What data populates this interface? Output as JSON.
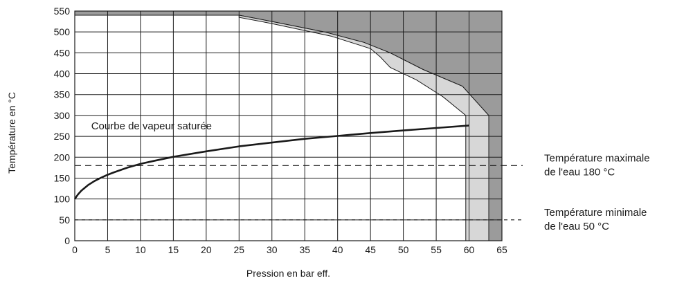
{
  "chart_data": {
    "type": "line",
    "xlabel": "Pression en bar eff.",
    "ylabel": "Température en °C",
    "xlim": [
      0,
      65
    ],
    "ylim": [
      0,
      550
    ],
    "x_ticks": [
      0,
      5,
      10,
      15,
      20,
      25,
      30,
      35,
      40,
      45,
      50,
      55,
      60,
      65
    ],
    "y_ticks": [
      0,
      50,
      100,
      150,
      200,
      250,
      300,
      350,
      400,
      450,
      500,
      550
    ],
    "grid": true,
    "series": [
      {
        "name": "Courbe de vapeur saturée",
        "x": [
          0,
          0.5,
          1,
          2,
          3,
          4,
          5,
          6,
          8,
          10,
          12,
          15,
          20,
          25,
          30,
          35,
          40,
          45,
          50,
          55,
          60
        ],
        "y": [
          100,
          111,
          120,
          133,
          143,
          151,
          158,
          164,
          175,
          184,
          191,
          201,
          214,
          226,
          235,
          244,
          251,
          258,
          264,
          270,
          276
        ]
      }
    ],
    "regions": [
      {
        "kind": "dark",
        "polygon": [
          [
            0,
            550
          ],
          [
            65,
            550
          ],
          [
            65,
            0
          ],
          [
            63,
            0
          ],
          [
            63,
            300
          ],
          [
            59,
            370
          ],
          [
            53,
            410
          ],
          [
            48,
            450
          ],
          [
            44,
            475
          ],
          [
            38,
            500
          ],
          [
            30,
            525
          ],
          [
            25,
            540
          ],
          [
            0,
            540
          ]
        ]
      },
      {
        "kind": "light",
        "polygon": [
          [
            25,
            540
          ],
          [
            30,
            525
          ],
          [
            38,
            500
          ],
          [
            44,
            475
          ],
          [
            48,
            450
          ],
          [
            53,
            410
          ],
          [
            59,
            370
          ],
          [
            63,
            300
          ],
          [
            63,
            0
          ],
          [
            59.5,
            0
          ],
          [
            59.5,
            300
          ],
          [
            56,
            345
          ],
          [
            52,
            385
          ],
          [
            48,
            415
          ],
          [
            46.5,
            440
          ],
          [
            45,
            460
          ],
          [
            39,
            490
          ],
          [
            30,
            520
          ],
          [
            25,
            535
          ],
          [
            25,
            540
          ]
        ]
      }
    ],
    "reference_lines": [
      {
        "y": 180,
        "dash": "long",
        "label": [
          "Température maximale",
          "de l'eau 180 °C"
        ]
      },
      {
        "y": 50,
        "dash": "short",
        "label": [
          "Température minimale",
          "de l'eau 50 °C"
        ]
      }
    ],
    "annotations": [
      {
        "text": "Courbe de vapeur saturée",
        "x": 2.5,
        "y": 275
      }
    ],
    "colors": {
      "dark_region": "#9b9b9b",
      "light_region": "#d7d7d7",
      "line": "#1a1a1a",
      "grid": "#1a1a1a"
    }
  }
}
